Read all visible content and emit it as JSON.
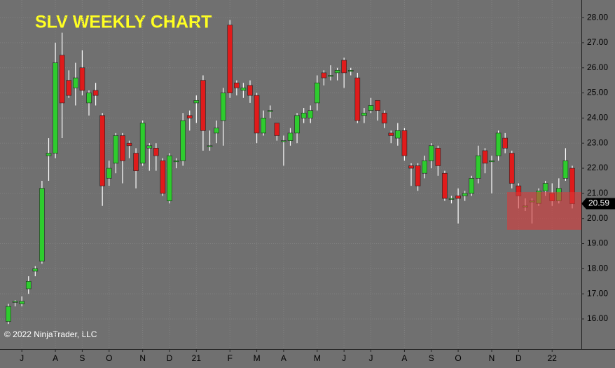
{
  "chart_data": {
    "type": "candlestick",
    "title": "SLV WEEKLY CHART",
    "copyright": "© 2022 NinjaTrader, LLC",
    "categories": [
      null,
      null,
      "J",
      null,
      null,
      null,
      null,
      "A",
      null,
      null,
      null,
      "S",
      null,
      null,
      null,
      "O",
      null,
      null,
      null,
      null,
      "N",
      null,
      null,
      null,
      "D",
      null,
      null,
      null,
      "21",
      null,
      null,
      null,
      null,
      "F",
      null,
      null,
      null,
      "M",
      null,
      null,
      null,
      "A",
      null,
      null,
      null,
      null,
      "M",
      null,
      null,
      null,
      "J",
      null,
      null,
      null,
      "J",
      null,
      null,
      null,
      null,
      "A",
      null,
      null,
      null,
      "S",
      null,
      null,
      null,
      "O",
      null,
      null,
      null,
      null,
      "N",
      null,
      null,
      null,
      "D",
      null,
      null,
      null,
      null,
      "22",
      null,
      null,
      null
    ],
    "series": [
      {
        "name": "SLV",
        "up_color": "#2ecc2e",
        "down_color": "#e01b1b",
        "open": [
          15.9,
          16.7,
          16.6,
          17.2,
          17.9,
          18.3,
          22.5,
          22.6,
          26.5,
          25.5,
          25.2,
          26.0,
          24.6,
          25.1,
          24.1,
          21.6,
          22.2,
          23.3,
          23.0,
          22.6,
          22.2,
          22.8,
          22.8,
          22.3,
          20.7,
          22.3,
          22.3,
          24.1,
          24.6,
          25.5,
          22.9,
          23.4,
          23.9,
          27.7,
          25.4,
          25.1,
          25.3,
          24.9,
          23.4,
          24.3,
          23.8,
          23.1,
          23.1,
          23.4,
          24.0,
          24.0,
          24.6,
          25.8,
          25.7,
          25.8,
          26.3,
          25.9,
          25.6,
          24.1,
          24.3,
          24.7,
          24.2,
          23.4,
          23.2,
          23.5,
          22.1,
          22.1,
          21.8,
          22.3,
          22.8,
          21.8,
          20.8,
          20.9,
          20.9,
          21.0,
          21.6,
          22.7,
          22.3,
          22.5,
          23.2,
          22.6,
          21.3,
          20.5,
          20.7,
          20.6,
          21.1,
          21.0,
          20.7,
          21.6,
          22.0
        ],
        "high": [
          16.6,
          16.75,
          16.9,
          17.7,
          18.1,
          21.5,
          23.2,
          27.0,
          27.4,
          25.9,
          26.2,
          26.7,
          25.1,
          25.4,
          24.2,
          22.3,
          23.4,
          23.4,
          23.1,
          22.8,
          23.9,
          23.0,
          23.0,
          22.4,
          22.6,
          22.4,
          24.2,
          24.3,
          24.9,
          25.7,
          23.5,
          23.9,
          25.2,
          27.9,
          25.5,
          25.4,
          25.5,
          25.0,
          24.3,
          24.5,
          23.8,
          23.3,
          23.6,
          24.2,
          24.4,
          24.5,
          25.7,
          25.9,
          26.1,
          26.0,
          26.4,
          26.0,
          25.8,
          24.4,
          24.8,
          24.7,
          24.3,
          23.5,
          23.8,
          23.6,
          22.2,
          22.2,
          22.5,
          23.0,
          22.9,
          21.9,
          20.9,
          21.2,
          21.1,
          21.7,
          22.9,
          22.8,
          22.5,
          23.5,
          23.4,
          22.7,
          21.4,
          20.8,
          20.8,
          21.2,
          21.5,
          21.4,
          21.6,
          22.8,
          22.1
        ],
        "low": [
          15.8,
          16.5,
          16.5,
          17.0,
          17.7,
          18.2,
          21.5,
          22.4,
          23.2,
          24.8,
          24.5,
          24.9,
          24.1,
          24.5,
          20.5,
          21.3,
          21.8,
          21.4,
          22.4,
          21.2,
          22.1,
          21.9,
          21.9,
          20.9,
          20.6,
          22.0,
          22.1,
          23.5,
          23.8,
          22.7,
          22.7,
          23.0,
          22.9,
          24.8,
          24.9,
          24.8,
          24.6,
          23.0,
          23.3,
          24.0,
          23.1,
          22.1,
          22.9,
          23.0,
          23.8,
          23.8,
          24.3,
          25.3,
          25.5,
          25.5,
          25.2,
          25.7,
          23.8,
          23.8,
          24.2,
          23.9,
          23.6,
          23.0,
          22.9,
          22.3,
          21.3,
          21.1,
          21.6,
          22.0,
          21.7,
          20.7,
          20.6,
          19.8,
          20.7,
          20.9,
          21.4,
          21.8,
          21.0,
          22.3,
          22.6,
          21.2,
          20.4,
          20.3,
          19.8,
          20.5,
          20.9,
          20.5,
          20.6,
          21.5,
          20.4
        ],
        "close": [
          16.5,
          16.7,
          16.7,
          17.5,
          18.0,
          21.2,
          22.6,
          26.2,
          24.6,
          24.9,
          25.6,
          25.1,
          25.0,
          24.9,
          21.3,
          22.0,
          23.3,
          22.3,
          22.9,
          21.9,
          23.8,
          22.9,
          22.5,
          21.0,
          22.5,
          22.3,
          23.9,
          24.0,
          24.7,
          23.5,
          22.9,
          23.6,
          25.0,
          25.0,
          25.2,
          25.2,
          24.9,
          23.4,
          24.0,
          24.3,
          23.3,
          23.1,
          23.4,
          24.1,
          24.2,
          24.3,
          25.4,
          25.6,
          25.7,
          25.9,
          25.8,
          25.9,
          23.9,
          24.2,
          24.5,
          24.3,
          23.8,
          23.3,
          23.5,
          22.5,
          22.0,
          21.3,
          22.3,
          22.9,
          22.1,
          20.8,
          20.8,
          20.8,
          21.0,
          21.6,
          22.5,
          22.2,
          22.3,
          23.4,
          22.8,
          21.4,
          20.9,
          20.5,
          20.7,
          21.1,
          21.4,
          20.7,
          21.2,
          22.3,
          20.59
        ]
      }
    ],
    "last_price": {
      "value": 20.59,
      "label": "20.59"
    },
    "highlight": {
      "low": 19.55,
      "high": 21.05,
      "color": "#d93a3a"
    },
    "ylim": [
      14.8,
      28.7
    ],
    "yticks": [
      {
        "value": 16,
        "label": "16.00"
      },
      {
        "value": 17,
        "label": "17.00"
      },
      {
        "value": 18,
        "label": "18.00"
      },
      {
        "value": 19,
        "label": "19.00"
      },
      {
        "value": 20,
        "label": "20.00"
      },
      {
        "value": 21,
        "label": "21.00"
      },
      {
        "value": 22,
        "label": "22.00"
      },
      {
        "value": 23,
        "label": "23.00"
      },
      {
        "value": 24,
        "label": "24.00"
      },
      {
        "value": 25,
        "label": "25.00"
      },
      {
        "value": 26,
        "label": "26.00"
      },
      {
        "value": 27,
        "label": "27.00"
      },
      {
        "value": 28,
        "label": "28.00"
      }
    ],
    "grid": true
  }
}
